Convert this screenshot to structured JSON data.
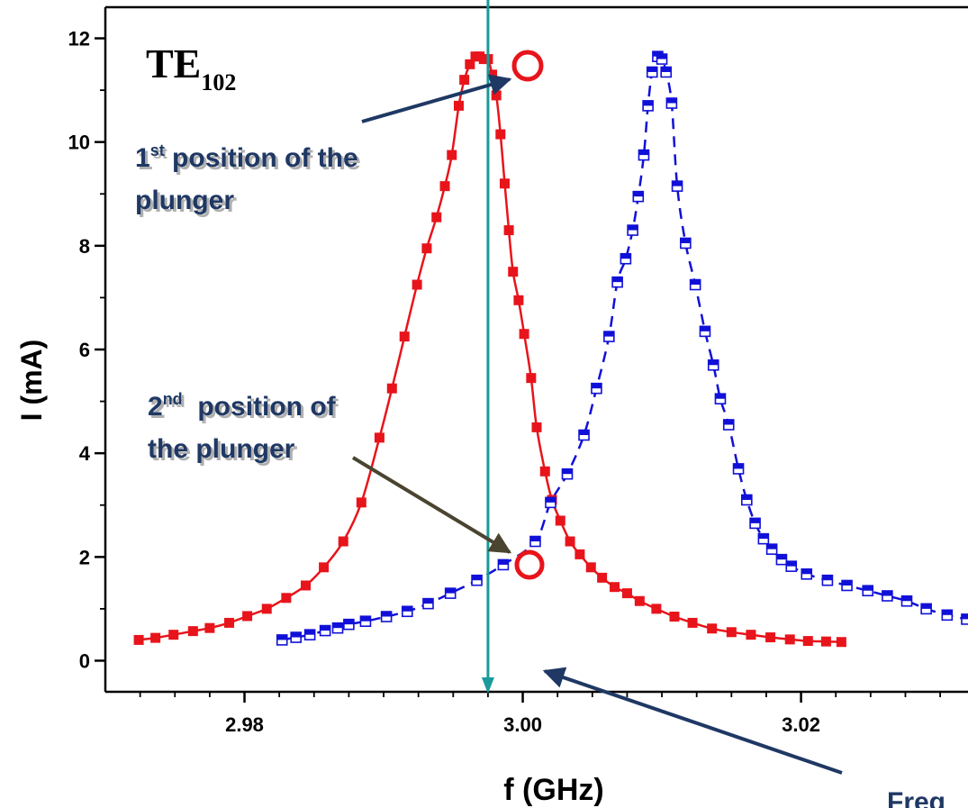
{
  "chart_data": {
    "type": "line",
    "xlabel": "f (GHz)",
    "ylabel": "I (mA)",
    "xlim": [
      2.97,
      3.032
    ],
    "ylim": [
      -0.6,
      12.6
    ],
    "xticks": [
      {
        "value": 2.98,
        "label": "2.98"
      },
      {
        "value": 3.0,
        "label": "3.00"
      },
      {
        "value": 3.02,
        "label": "3.02"
      }
    ],
    "yticks": [
      {
        "value": 0,
        "label": "0"
      },
      {
        "value": 2,
        "label": "2"
      },
      {
        "value": 4,
        "label": "4"
      },
      {
        "value": 6,
        "label": "6"
      },
      {
        "value": 8,
        "label": "8"
      },
      {
        "value": 10,
        "label": "10"
      },
      {
        "value": 12,
        "label": "12"
      }
    ],
    "mode_label": {
      "main": "TE",
      "sub": "102"
    },
    "vertical_line_x": 2.9975,
    "series": [
      {
        "style": "solid",
        "marker": "filled-square",
        "color": "#e8141b",
        "x": [
          2.9724,
          2.9736,
          2.9749,
          2.9763,
          2.9775,
          2.9789,
          2.9802,
          2.9816,
          2.983,
          2.9844,
          2.9857,
          2.9871,
          2.9884,
          2.9897,
          2.9906,
          2.9915,
          2.9924,
          2.9931,
          2.9938,
          2.9944,
          2.9949,
          2.9954,
          2.9958,
          2.9962,
          2.9966,
          2.9969,
          2.9972,
          2.9975,
          2.9978,
          2.9981,
          2.9984,
          2.9987,
          2.999,
          2.9993,
          2.9997,
          3.0001,
          3.0006,
          3.001,
          3.0016,
          3.0021,
          3.0027,
          3.0034,
          3.0041,
          3.0049,
          3.0057,
          3.0066,
          3.0075,
          3.0084,
          3.0096,
          3.0109,
          3.0122,
          3.0136,
          3.015,
          3.0164,
          3.0178,
          3.0192,
          3.0205,
          3.0218,
          3.0229
        ],
        "y": [
          0.4,
          0.44,
          0.5,
          0.57,
          0.63,
          0.73,
          0.86,
          1.0,
          1.21,
          1.45,
          1.8,
          2.3,
          3.05,
          4.3,
          5.25,
          6.25,
          7.25,
          7.95,
          8.55,
          9.15,
          9.75,
          10.7,
          11.2,
          11.5,
          11.65,
          11.65,
          11.6,
          11.6,
          11.3,
          10.9,
          10.15,
          9.2,
          8.3,
          7.5,
          6.95,
          6.3,
          5.45,
          4.5,
          3.65,
          3.1,
          2.7,
          2.3,
          2.05,
          1.8,
          1.6,
          1.42,
          1.3,
          1.15,
          1.0,
          0.85,
          0.73,
          0.62,
          0.55,
          0.5,
          0.45,
          0.41,
          0.38,
          0.37,
          0.36
        ]
      },
      {
        "style": "dashed",
        "marker": "half-filled-square",
        "color": "#1010d8",
        "x": [
          2.9827,
          2.9837,
          2.9847,
          2.9858,
          2.9867,
          2.9875,
          2.9887,
          2.9902,
          2.9917,
          2.9932,
          2.9948,
          2.9967,
          2.9986,
          3.0009,
          3.002,
          3.0032,
          3.0044,
          3.0053,
          3.0062,
          3.0068,
          3.0074,
          3.0079,
          3.0083,
          3.0087,
          3.009,
          3.0093,
          3.0097,
          3.01,
          3.0103,
          3.0107,
          3.0111,
          3.0117,
          3.0124,
          3.0131,
          3.0137,
          3.0142,
          3.0148,
          3.0155,
          3.0161,
          3.0167,
          3.0173,
          3.0179,
          3.0186,
          3.0193,
          3.0204,
          3.0219,
          3.0233,
          3.0248,
          3.0262,
          3.0276,
          3.029,
          3.0305,
          3.0319
        ],
        "y": [
          0.4,
          0.45,
          0.5,
          0.58,
          0.63,
          0.7,
          0.76,
          0.85,
          0.95,
          1.1,
          1.3,
          1.55,
          1.85,
          2.3,
          3.05,
          3.6,
          4.35,
          5.25,
          6.25,
          7.3,
          7.75,
          8.3,
          8.95,
          9.75,
          10.7,
          11.35,
          11.65,
          11.6,
          11.35,
          10.75,
          9.15,
          8.05,
          7.25,
          6.35,
          5.7,
          5.05,
          4.55,
          3.7,
          3.1,
          2.65,
          2.35,
          2.15,
          1.95,
          1.82,
          1.67,
          1.55,
          1.45,
          1.35,
          1.25,
          1.15,
          1.0,
          0.88,
          0.8
        ]
      }
    ]
  },
  "annotations": {
    "first_position": {
      "num": "1",
      "sup": "st",
      "line1_rest": " position of the",
      "line2": "plunger"
    },
    "second_position": {
      "num": "2",
      "sup": "nd",
      "line1_rest": "  position of",
      "line2": "the plunger"
    },
    "frequency_partial": "Freq"
  },
  "colors": {
    "red_series": "#e8141b",
    "blue_series": "#1010d8",
    "vertical_line": "#1a9a9a",
    "annotation_text": "#1f3864",
    "arrow_dark_blue": "#1f3864",
    "arrow_olive": "#4a4530",
    "highlight_circle": "#e8141b"
  }
}
